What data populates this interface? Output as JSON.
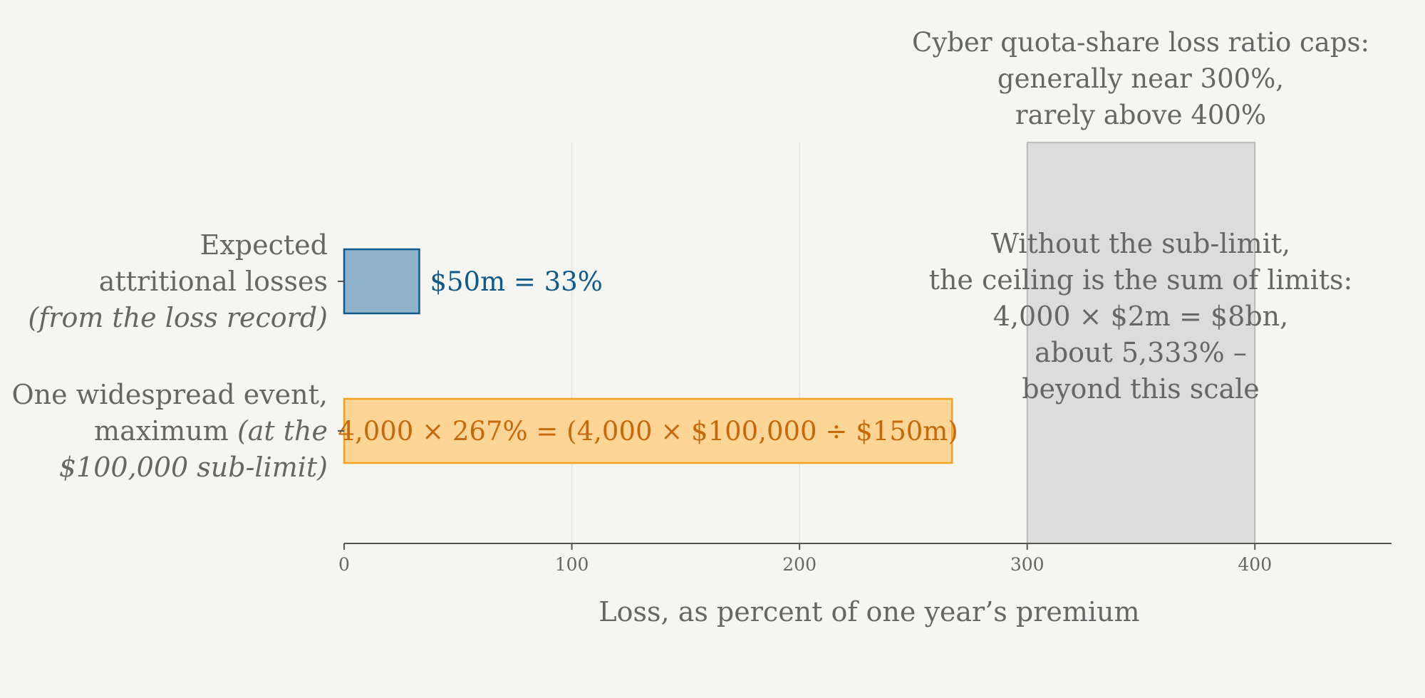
{
  "chart_data": {
    "type": "bar",
    "orientation": "horizontal",
    "xlabel": "Loss, as percent of one year’s premium",
    "xlim": [
      0,
      460
    ],
    "xticks": [
      0,
      100,
      200,
      300,
      400
    ],
    "grid": true,
    "categories": [
      {
        "lines": [
          {
            "parts": [
              {
                "text": "Expected",
                "italic": false
              }
            ]
          },
          {
            "parts": [
              {
                "text": "attritional losses",
                "italic": false
              }
            ]
          },
          {
            "parts": [
              {
                "text": "(from the loss record)",
                "italic": true
              }
            ]
          }
        ]
      },
      {
        "lines": [
          {
            "parts": [
              {
                "text": "One widespread event,",
                "italic": false
              }
            ]
          },
          {
            "parts": [
              {
                "text": "maximum ",
                "italic": false
              },
              {
                "text": "(at the",
                "italic": true
              }
            ]
          },
          {
            "parts": [
              {
                "text": "$100,000 sub-limit)",
                "italic": true
              }
            ]
          }
        ]
      }
    ],
    "values": [
      33,
      267
    ],
    "data_labels": [
      "$50m = 33%",
      "4,000 × 267% = (4,000 × $100,000 ÷ $150m)"
    ],
    "bar_colors": [
      {
        "fill": "#8fb3ca",
        "stroke": "#0f5a8c",
        "label": "#0f5a8c"
      },
      {
        "fill": "#fdd597",
        "stroke": "#f2a21f",
        "label": "#c7680a"
      }
    ],
    "band": {
      "from": 300,
      "to": 400,
      "title_lines": [
        "Cyber quota-share loss ratio caps:",
        "generally near 300%,",
        "rarely above 400%"
      ],
      "fill": "#dcdcdc",
      "stroke": "#b0b0b0"
    },
    "annotation_lines": [
      "Without the sub-limit,",
      "the ceiling is the sum of limits:",
      "4,000 × $2m = $8bn,",
      "about 5,333% –",
      "beyond this scale"
    ],
    "colors": {
      "background": "#f5f5f1",
      "text": "#666666",
      "axis": "#555555",
      "grid": "#e6e6e6"
    }
  }
}
